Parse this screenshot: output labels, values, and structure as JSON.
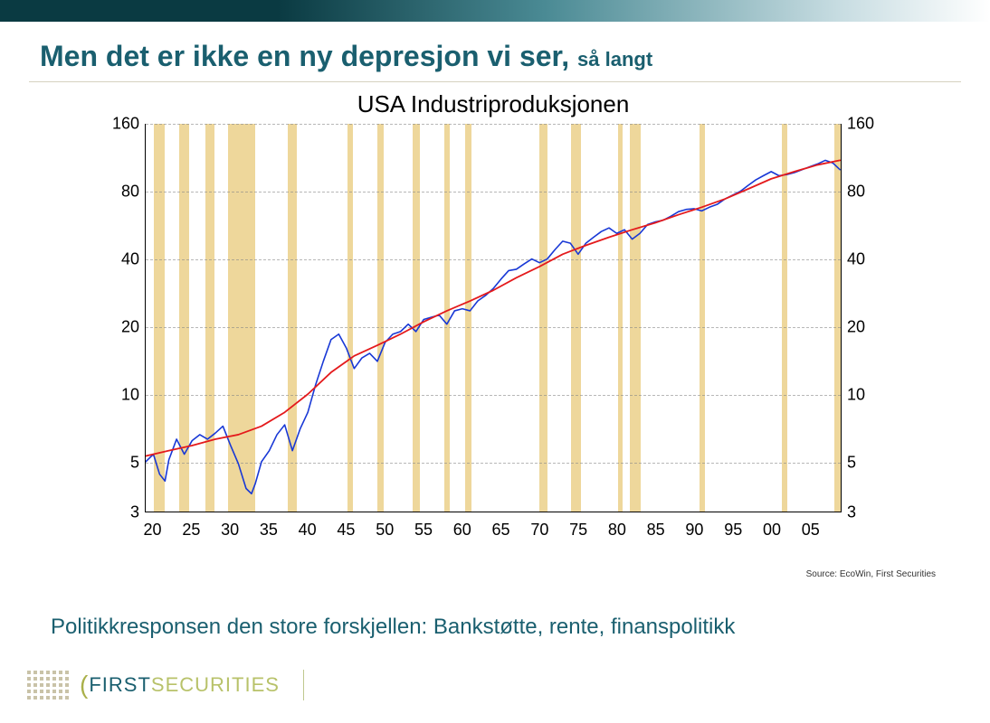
{
  "slide": {
    "title_main": "Men det er ikke en ny depresjon vi ser,",
    "title_sub": "så langt",
    "title_color": "#1a5f6f",
    "footnote": "Politikkresponsen den store forskjellen: Bankstøtte, rente, finanspolitikk",
    "source": "Source: EcoWin, First Securities",
    "top_bar_gradient_from": "#0a3a42",
    "top_bar_gradient_mid": "#4a8a94",
    "top_bar_gradient_to": "#ffffff"
  },
  "chart": {
    "type": "line",
    "title": "USA Industriproduksjonen",
    "title_fontsize": 26,
    "xlim": [
      1919,
      2009
    ],
    "ylim": [
      3,
      160
    ],
    "yscale": "log",
    "x_ticks": [
      1920,
      1925,
      1930,
      1935,
      1940,
      1945,
      1950,
      1955,
      1960,
      1965,
      1970,
      1975,
      1980,
      1985,
      1990,
      1995,
      2000,
      2005
    ],
    "x_tick_labels": [
      "20",
      "25",
      "30",
      "35",
      "40",
      "45",
      "50",
      "55",
      "60",
      "65",
      "70",
      "75",
      "80",
      "85",
      "90",
      "95",
      "00",
      "05"
    ],
    "y_ticks": [
      3,
      5,
      10,
      20,
      40,
      80,
      160
    ],
    "y_tick_labels": [
      "3",
      "5",
      "10",
      "20",
      "40",
      "80",
      "160"
    ],
    "grid_color": "#888888",
    "axis_color": "#000000",
    "background_color": "#ffffff",
    "tick_fontsize": 18,
    "recession_color": "#ecd390",
    "recessions": [
      [
        1920.0,
        1921.5
      ],
      [
        1923.3,
        1924.6
      ],
      [
        1926.7,
        1927.9
      ],
      [
        1929.6,
        1933.2
      ],
      [
        1937.3,
        1938.5
      ],
      [
        1945.1,
        1945.8
      ],
      [
        1948.9,
        1949.8
      ],
      [
        1953.5,
        1954.4
      ],
      [
        1957.6,
        1958.3
      ],
      [
        1960.3,
        1961.1
      ],
      [
        1969.9,
        1970.9
      ],
      [
        1973.9,
        1975.2
      ],
      [
        1980.0,
        1980.6
      ],
      [
        1981.5,
        1982.9
      ],
      [
        1990.5,
        1991.2
      ],
      [
        2001.2,
        2001.9
      ],
      [
        2007.9,
        2008.9
      ]
    ],
    "series": [
      {
        "name": "industrial_production",
        "color": "#1838d6",
        "line_width": 1.6,
        "points": [
          [
            1919,
            5.0
          ],
          [
            1920,
            5.4
          ],
          [
            1920.8,
            4.4
          ],
          [
            1921.5,
            4.1
          ],
          [
            1922,
            5.1
          ],
          [
            1923,
            6.3
          ],
          [
            1924,
            5.4
          ],
          [
            1925,
            6.2
          ],
          [
            1926,
            6.6
          ],
          [
            1927,
            6.3
          ],
          [
            1928,
            6.7
          ],
          [
            1929,
            7.2
          ],
          [
            1930,
            5.9
          ],
          [
            1931,
            4.9
          ],
          [
            1932,
            3.8
          ],
          [
            1932.7,
            3.6
          ],
          [
            1933.2,
            4.0
          ],
          [
            1934,
            5.0
          ],
          [
            1935,
            5.6
          ],
          [
            1936,
            6.6
          ],
          [
            1937,
            7.3
          ],
          [
            1938,
            5.6
          ],
          [
            1939,
            7.0
          ],
          [
            1940,
            8.3
          ],
          [
            1941,
            11.0
          ],
          [
            1942,
            14.0
          ],
          [
            1943,
            17.5
          ],
          [
            1944,
            18.5
          ],
          [
            1945,
            16.0
          ],
          [
            1946,
            13.0
          ],
          [
            1947,
            14.5
          ],
          [
            1948,
            15.2
          ],
          [
            1949,
            14.0
          ],
          [
            1950,
            17.0
          ],
          [
            1951,
            18.5
          ],
          [
            1952,
            19.0
          ],
          [
            1953,
            20.5
          ],
          [
            1954,
            19.0
          ],
          [
            1955,
            21.5
          ],
          [
            1956,
            22.0
          ],
          [
            1957,
            22.5
          ],
          [
            1958,
            20.5
          ],
          [
            1959,
            23.5
          ],
          [
            1960,
            24.0
          ],
          [
            1961,
            23.5
          ],
          [
            1962,
            26.0
          ],
          [
            1963,
            27.5
          ],
          [
            1964,
            29.5
          ],
          [
            1965,
            32.5
          ],
          [
            1966,
            35.5
          ],
          [
            1967,
            36.0
          ],
          [
            1968,
            38.0
          ],
          [
            1969,
            40.0
          ],
          [
            1970,
            38.5
          ],
          [
            1971,
            40.0
          ],
          [
            1972,
            44.0
          ],
          [
            1973,
            48.0
          ],
          [
            1974,
            47.0
          ],
          [
            1975,
            42.0
          ],
          [
            1976,
            47.0
          ],
          [
            1977,
            50.0
          ],
          [
            1978,
            53.0
          ],
          [
            1979,
            55.0
          ],
          [
            1980,
            52.0
          ],
          [
            1981,
            54.0
          ],
          [
            1982,
            49.0
          ],
          [
            1983,
            52.0
          ],
          [
            1984,
            57.0
          ],
          [
            1985,
            58.5
          ],
          [
            1986,
            59.5
          ],
          [
            1987,
            62.0
          ],
          [
            1988,
            65.0
          ],
          [
            1989,
            66.5
          ],
          [
            1990,
            67.0
          ],
          [
            1991,
            65.5
          ],
          [
            1992,
            68.0
          ],
          [
            1993,
            70.0
          ],
          [
            1994,
            74.0
          ],
          [
            1995,
            77.0
          ],
          [
            1996,
            80.0
          ],
          [
            1997,
            85.0
          ],
          [
            1998,
            90.0
          ],
          [
            1999,
            94.0
          ],
          [
            2000,
            98.0
          ],
          [
            2001,
            94.0
          ],
          [
            2002,
            95.0
          ],
          [
            2003,
            97.0
          ],
          [
            2004,
            100.0
          ],
          [
            2005,
            103.0
          ],
          [
            2006,
            106.0
          ],
          [
            2007,
            110.0
          ],
          [
            2008,
            107.0
          ],
          [
            2008.9,
            100.0
          ]
        ]
      },
      {
        "name": "trend",
        "color": "#e41a1c",
        "line_width": 1.8,
        "points": [
          [
            1919,
            5.3
          ],
          [
            1922,
            5.6
          ],
          [
            1925,
            5.9
          ],
          [
            1928,
            6.3
          ],
          [
            1931,
            6.6
          ],
          [
            1934,
            7.2
          ],
          [
            1937,
            8.3
          ],
          [
            1940,
            10.0
          ],
          [
            1943,
            12.5
          ],
          [
            1946,
            14.8
          ],
          [
            1949,
            16.5
          ],
          [
            1952,
            18.5
          ],
          [
            1955,
            21.0
          ],
          [
            1958,
            23.5
          ],
          [
            1961,
            26.0
          ],
          [
            1964,
            29.0
          ],
          [
            1967,
            33.0
          ],
          [
            1970,
            37.0
          ],
          [
            1973,
            42.0
          ],
          [
            1976,
            46.0
          ],
          [
            1979,
            50.0
          ],
          [
            1982,
            54.0
          ],
          [
            1985,
            58.0
          ],
          [
            1988,
            63.0
          ],
          [
            1991,
            68.0
          ],
          [
            1994,
            74.0
          ],
          [
            1997,
            82.0
          ],
          [
            2000,
            91.0
          ],
          [
            2003,
            98.0
          ],
          [
            2006,
            105.0
          ],
          [
            2008.9,
            110.0
          ]
        ]
      }
    ]
  },
  "logo": {
    "first": "FIRST",
    "sec": "SECURITIES",
    "first_color": "#1a5f6f",
    "sec_color": "#b8c26a",
    "paren_color": "#aab04a"
  }
}
